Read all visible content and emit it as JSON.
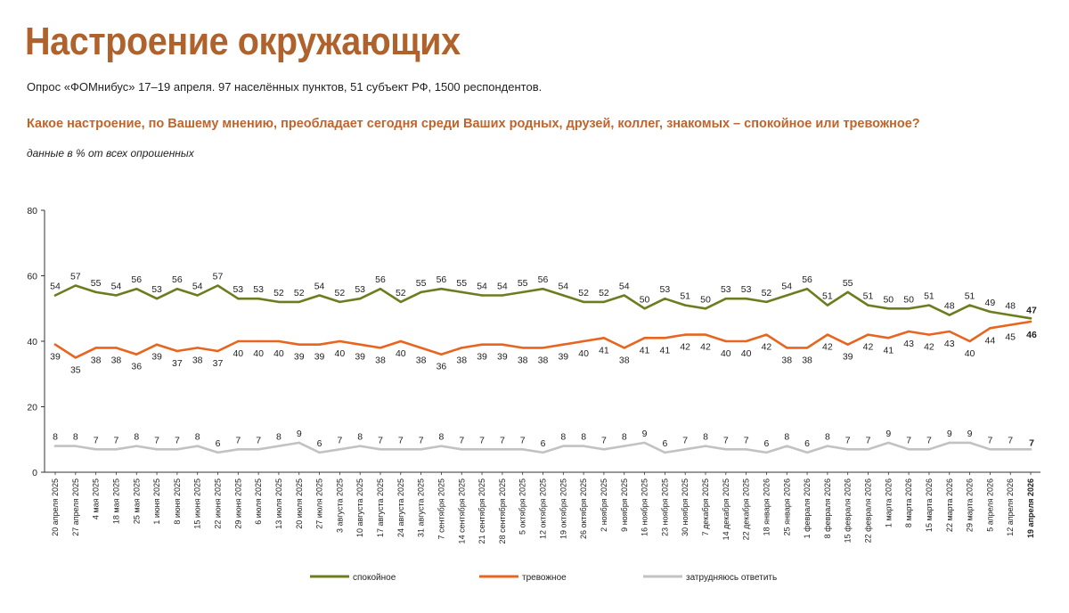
{
  "header": {
    "title": "Настроение окружающих",
    "subtitle": "Опрос «ФОМнибус» 17–19 апреля. 97 населённых пунктов, 51 субъект РФ, 1500 респондентов.",
    "question": "Какое настроение, по Вашему мнению, преобладает сегодня среди Ваших родных, друзей, коллег, знакомых – спокойное или тревожное?",
    "note": "данные в % от всех опрошенных"
  },
  "chart_data": {
    "type": "line",
    "ylim": [
      0,
      80
    ],
    "yticks": [
      0,
      20,
      40,
      60,
      80
    ],
    "legend_position": "bottom",
    "categories": [
      "20 апреля 2025",
      "27 апреля 2025",
      "4 мая 2025",
      "18 мая 2025",
      "25 мая 2025",
      "1 июня 2025",
      "8 июня 2025",
      "15 июня 2025",
      "22 июня 2025",
      "29 июня 2025",
      "6 июля 2025",
      "13 июля 2025",
      "20 июля 2025",
      "27 июля 2025",
      "3 августа 2025",
      "10 августа 2025",
      "17 августа 2025",
      "24 августа 2025",
      "31 августа 2025",
      "7 сентября 2025",
      "14 сентября 2025",
      "21 сентября 2025",
      "28 сентября 2025",
      "5 октября 2025",
      "12 октября 2025",
      "19 октября 2025",
      "26 октября 2025",
      "2 ноября 2025",
      "9 ноября 2025",
      "16 ноября 2025",
      "23 ноября 2025",
      "30 ноября 2025",
      "7 декабря 2025",
      "14 декабря 2025",
      "22 декабря 2025",
      "18 января 2026",
      "25 января 2026",
      "1 февраля 2026",
      "8 февраля 2026",
      "15 февраля 2026",
      "22 февраля 2026",
      "1 марта 2026",
      "8 марта 2026",
      "15 марта 2026",
      "22 марта 2026",
      "29 марта 2026",
      "5 апреля 2026",
      "12 апреля 2026",
      "19 апреля 2026"
    ],
    "series": [
      {
        "name": "спокойное",
        "color": "#6b7d1f",
        "values": [
          54,
          57,
          55,
          54,
          56,
          53,
          56,
          54,
          57,
          53,
          53,
          52,
          52,
          54,
          52,
          53,
          56,
          52,
          55,
          56,
          55,
          54,
          54,
          55,
          56,
          54,
          52,
          52,
          54,
          50,
          53,
          51,
          50,
          53,
          53,
          52,
          54,
          56,
          51,
          55,
          51,
          50,
          50,
          51,
          48,
          51,
          49,
          48,
          47
        ]
      },
      {
        "name": "тревожное",
        "color": "#e8651f",
        "values": [
          39,
          35,
          38,
          38,
          36,
          39,
          37,
          38,
          37,
          40,
          40,
          40,
          39,
          39,
          40,
          39,
          38,
          40,
          38,
          36,
          38,
          39,
          39,
          38,
          38,
          39,
          40,
          41,
          38,
          41,
          41,
          42,
          42,
          40,
          40,
          42,
          38,
          38,
          42,
          39,
          42,
          41,
          43,
          42,
          43,
          40,
          44,
          45,
          46
        ]
      },
      {
        "name": "затрудняюсь ответить",
        "color": "#c2c2c2",
        "values": [
          8,
          8,
          7,
          7,
          8,
          7,
          7,
          8,
          6,
          7,
          7,
          8,
          9,
          6,
          7,
          8,
          7,
          7,
          7,
          8,
          7,
          7,
          7,
          7,
          6,
          8,
          8,
          7,
          8,
          9,
          6,
          7,
          8,
          7,
          7,
          6,
          8,
          6,
          8,
          7,
          7,
          9,
          7,
          7,
          9,
          9,
          7,
          7,
          7
        ]
      }
    ]
  }
}
